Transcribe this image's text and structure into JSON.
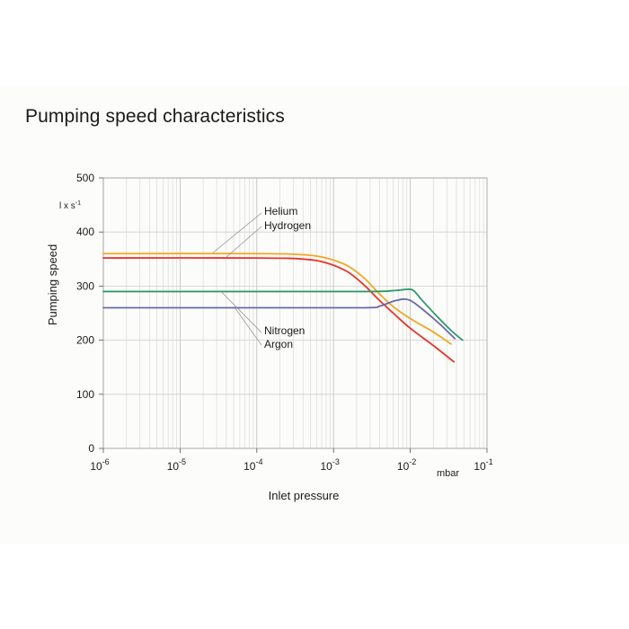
{
  "chart_data": {
    "type": "line",
    "title": "Pumping speed characteristics",
    "xlabel": "Inlet pressure",
    "xunit": "mbar",
    "ylabel": "Pumping speed",
    "yunit": "l x s⁻¹",
    "xscale": "log",
    "xlim": [
      1e-06,
      0.1
    ],
    "ylim": [
      0,
      500
    ],
    "grid": true,
    "y_ticks": [
      "0",
      "100",
      "200",
      "300",
      "400",
      "500"
    ],
    "x_ticks": [
      {
        "base": "10",
        "exp": "-6"
      },
      {
        "base": "10",
        "exp": "-5"
      },
      {
        "base": "10",
        "exp": "-4"
      },
      {
        "base": "10",
        "exp": "-3"
      },
      {
        "base": "10",
        "exp": "-2"
      },
      {
        "base": "10",
        "exp": "-1"
      }
    ],
    "series": [
      {
        "name": "Helium",
        "color": "#f5a623",
        "points": [
          [
            1e-06,
            360
          ],
          [
            0.0001,
            360
          ],
          [
            0.0004,
            358
          ],
          [
            0.0008,
            352
          ],
          [
            0.0015,
            338
          ],
          [
            0.0025,
            315
          ],
          [
            0.004,
            285
          ],
          [
            0.006,
            262
          ],
          [
            0.01,
            240
          ],
          [
            0.02,
            215
          ],
          [
            0.034,
            193
          ]
        ]
      },
      {
        "name": "Hydrogen",
        "color": "#e8352b",
        "points": [
          [
            1e-06,
            352
          ],
          [
            0.0001,
            352
          ],
          [
            0.0004,
            350
          ],
          [
            0.0008,
            343
          ],
          [
            0.0015,
            327
          ],
          [
            0.0025,
            302
          ],
          [
            0.004,
            273
          ],
          [
            0.006,
            250
          ],
          [
            0.01,
            222
          ],
          [
            0.02,
            190
          ],
          [
            0.037,
            160
          ]
        ]
      },
      {
        "name": "Nitrogen",
        "color": "#2e9a6a",
        "points": [
          [
            1e-06,
            290
          ],
          [
            0.0001,
            290
          ],
          [
            0.003,
            290
          ],
          [
            0.0065,
            292
          ],
          [
            0.009,
            294
          ],
          [
            0.011,
            292
          ],
          [
            0.014,
            275
          ],
          [
            0.022,
            245
          ],
          [
            0.034,
            218
          ],
          [
            0.048,
            200
          ]
        ]
      },
      {
        "name": "Argon",
        "color": "#6a68a8",
        "points": [
          [
            1e-06,
            260
          ],
          [
            0.0001,
            260
          ],
          [
            0.0025,
            260
          ],
          [
            0.004,
            263
          ],
          [
            0.006,
            272
          ],
          [
            0.0085,
            276
          ],
          [
            0.011,
            270
          ],
          [
            0.016,
            252
          ],
          [
            0.025,
            228
          ],
          [
            0.038,
            203
          ]
        ]
      }
    ],
    "annotations": [
      {
        "group": "top",
        "labels": [
          "Helium",
          "Hydrogen"
        ]
      },
      {
        "group": "bottom",
        "labels": [
          "Nitrogen",
          "Argon"
        ]
      }
    ]
  }
}
